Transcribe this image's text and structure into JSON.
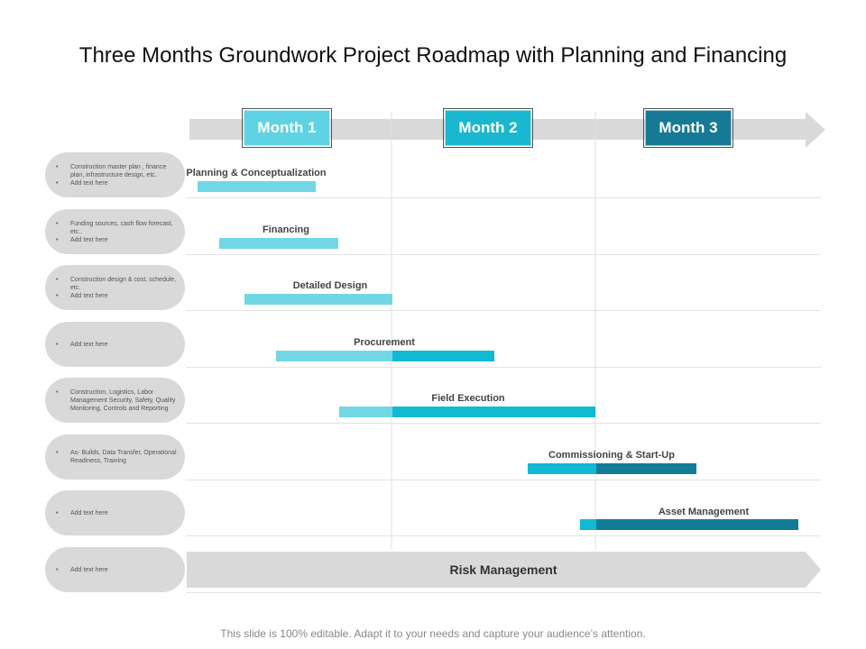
{
  "title": "Three Months Groundwork Project Roadmap with Planning and Financing",
  "months": [
    {
      "label": "Month 1",
      "color": "#5fd3e3"
    },
    {
      "label": "Month 2",
      "color": "#1ab8d0"
    },
    {
      "label": "Month 3",
      "color": "#167a96"
    }
  ],
  "colors": {
    "month1_bar": "#72d7e5",
    "month2_bar": "#12b9d4",
    "month3_bar": "#127c97",
    "arrow": "#d9d9d9",
    "pill": "#d9d9d9"
  },
  "rows": [
    {
      "notes": [
        "Construction master plan , finance plan, infrastructure design, etc.",
        "Add text here"
      ],
      "task": "Planning & Conceptualization"
    },
    {
      "notes": [
        "Funding sources, cash flow forecast, etc..",
        "Add text here"
      ],
      "task": "Financing"
    },
    {
      "notes": [
        "Construction design & cost, schedule, etc.",
        "Add text here"
      ],
      "task": "Detailed Design"
    },
    {
      "notes": [
        "Add text here"
      ],
      "task": "Procurement"
    },
    {
      "notes": [
        "Construction, Logistics, Labor Management Security, Safety, Quality Monitoring, Controls and Reporting"
      ],
      "task": "Field Execution"
    },
    {
      "notes": [
        "As- Builds, Data Transfer, Operational Readiness, Training"
      ],
      "task": "Commissioning & Start-Up"
    },
    {
      "notes": [
        "Add text here"
      ],
      "task": "Asset Management"
    },
    {
      "notes": [
        "Add text here"
      ],
      "task": "Risk Management"
    }
  ],
  "footer": "This slide is 100% editable. Adapt it to your needs and capture your audience’s attention."
}
